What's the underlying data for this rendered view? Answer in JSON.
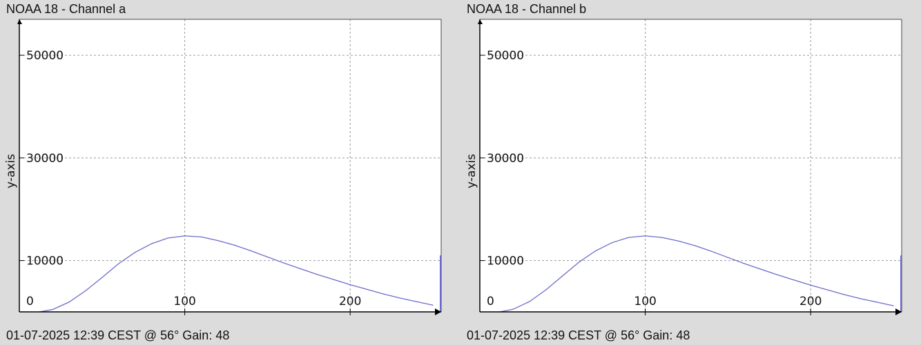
{
  "charts": [
    {
      "title": "NOAA 18 - Channel a",
      "footer": "01-07-2025 12:39 CEST @ 56° Gain: 48"
    },
    {
      "title": "NOAA 18 - Channel b",
      "footer": "01-07-2025 12:39 CEST @ 56° Gain: 48"
    }
  ],
  "chart_data": [
    {
      "type": "line",
      "title": "NOAA 18 - Channel a",
      "xlabel": "",
      "ylabel": "y-axis",
      "xlim": [
        0,
        255
      ],
      "ylim": [
        0,
        57000
      ],
      "x_ticks": [
        100,
        200
      ],
      "y_ticks": [
        0,
        10000,
        30000,
        50000
      ],
      "grid": true,
      "series_color": "#6b6bc9",
      "x": [
        12,
        20,
        30,
        40,
        50,
        60,
        70,
        80,
        90,
        100,
        110,
        120,
        130,
        140,
        150,
        160,
        170,
        180,
        190,
        200,
        210,
        220,
        230,
        240,
        250
      ],
      "y": [
        0,
        450,
        1900,
        4100,
        6700,
        9400,
        11600,
        13300,
        14400,
        14800,
        14600,
        13900,
        13000,
        11900,
        10700,
        9500,
        8400,
        7300,
        6300,
        5300,
        4400,
        3500,
        2700,
        2000,
        1300
      ],
      "end_spike": 11000
    },
    {
      "type": "line",
      "title": "NOAA 18 - Channel b",
      "xlabel": "",
      "ylabel": "y-axis",
      "xlim": [
        0,
        255
      ],
      "ylim": [
        0,
        57000
      ],
      "x_ticks": [
        100,
        200
      ],
      "y_ticks": [
        0,
        10000,
        30000,
        50000
      ],
      "grid": true,
      "series_color": "#6b6bc9",
      "x": [
        12,
        20,
        30,
        40,
        50,
        60,
        70,
        80,
        90,
        100,
        110,
        120,
        130,
        140,
        150,
        160,
        170,
        180,
        190,
        200,
        210,
        220,
        230,
        240,
        250
      ],
      "y": [
        0,
        500,
        2000,
        4300,
        7000,
        9700,
        11900,
        13500,
        14500,
        14800,
        14500,
        13800,
        12900,
        11800,
        10600,
        9400,
        8300,
        7200,
        6200,
        5200,
        4300,
        3400,
        2600,
        1900,
        1200
      ],
      "end_spike": 11000
    }
  ]
}
